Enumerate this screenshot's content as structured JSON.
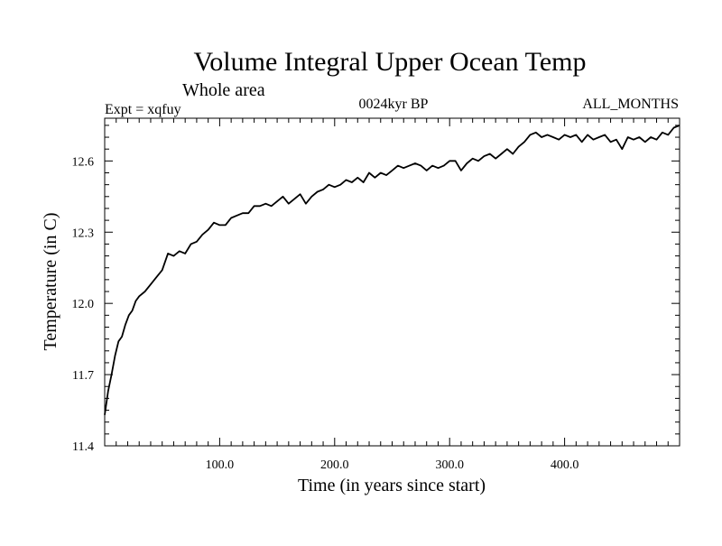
{
  "chart_data": {
    "type": "line",
    "title": "Volume Integral Upper Ocean Temp",
    "subtitle": "Whole area",
    "header": {
      "left": "Expt = xqfuy",
      "center": "0024kyr BP",
      "right": "ALL_MONTHS"
    },
    "xlabel": "Time (in years since start)",
    "ylabel": "Temperature (in C)",
    "xlim": [
      0,
      500
    ],
    "ylim": [
      11.4,
      12.78
    ],
    "x_ticks": [
      100,
      200,
      300,
      400
    ],
    "x_tick_labels": [
      "100.0",
      "200.0",
      "300.0",
      "400.0"
    ],
    "y_ticks": [
      11.4,
      11.7,
      12.0,
      12.3,
      12.6
    ],
    "y_tick_labels": [
      "11.4",
      "11.7",
      "12.0",
      "12.3",
      "12.6"
    ],
    "series": [
      {
        "name": "xqfuy",
        "color": "#000000",
        "points": [
          [
            0,
            11.53
          ],
          [
            3,
            11.63
          ],
          [
            6,
            11.7
          ],
          [
            9,
            11.78
          ],
          [
            12,
            11.84
          ],
          [
            15,
            11.86
          ],
          [
            18,
            11.91
          ],
          [
            21,
            11.95
          ],
          [
            24,
            11.97
          ],
          [
            27,
            12.01
          ],
          [
            30,
            12.03
          ],
          [
            35,
            12.05
          ],
          [
            40,
            12.08
          ],
          [
            45,
            12.11
          ],
          [
            50,
            12.14
          ],
          [
            55,
            12.21
          ],
          [
            60,
            12.2
          ],
          [
            65,
            12.22
          ],
          [
            70,
            12.21
          ],
          [
            75,
            12.25
          ],
          [
            80,
            12.26
          ],
          [
            85,
            12.29
          ],
          [
            90,
            12.31
          ],
          [
            95,
            12.34
          ],
          [
            100,
            12.33
          ],
          [
            105,
            12.33
          ],
          [
            110,
            12.36
          ],
          [
            115,
            12.37
          ],
          [
            120,
            12.38
          ],
          [
            125,
            12.38
          ],
          [
            130,
            12.41
          ],
          [
            135,
            12.41
          ],
          [
            140,
            12.42
          ],
          [
            145,
            12.41
          ],
          [
            150,
            12.43
          ],
          [
            155,
            12.45
          ],
          [
            160,
            12.42
          ],
          [
            165,
            12.44
          ],
          [
            170,
            12.46
          ],
          [
            175,
            12.42
          ],
          [
            180,
            12.45
          ],
          [
            185,
            12.47
          ],
          [
            190,
            12.48
          ],
          [
            195,
            12.5
          ],
          [
            200,
            12.49
          ],
          [
            205,
            12.5
          ],
          [
            210,
            12.52
          ],
          [
            215,
            12.51
          ],
          [
            220,
            12.53
          ],
          [
            225,
            12.51
          ],
          [
            230,
            12.55
          ],
          [
            235,
            12.53
          ],
          [
            240,
            12.55
          ],
          [
            245,
            12.54
          ],
          [
            250,
            12.56
          ],
          [
            255,
            12.58
          ],
          [
            260,
            12.57
          ],
          [
            265,
            12.58
          ],
          [
            270,
            12.59
          ],
          [
            275,
            12.58
          ],
          [
            280,
            12.56
          ],
          [
            285,
            12.58
          ],
          [
            290,
            12.57
          ],
          [
            295,
            12.58
          ],
          [
            300,
            12.6
          ],
          [
            305,
            12.6
          ],
          [
            310,
            12.56
          ],
          [
            315,
            12.59
          ],
          [
            320,
            12.61
          ],
          [
            325,
            12.6
          ],
          [
            330,
            12.62
          ],
          [
            335,
            12.63
          ],
          [
            340,
            12.61
          ],
          [
            345,
            12.63
          ],
          [
            350,
            12.65
          ],
          [
            355,
            12.63
          ],
          [
            360,
            12.66
          ],
          [
            365,
            12.68
          ],
          [
            370,
            12.71
          ],
          [
            375,
            12.72
          ],
          [
            380,
            12.7
          ],
          [
            385,
            12.71
          ],
          [
            390,
            12.7
          ],
          [
            395,
            12.69
          ],
          [
            400,
            12.71
          ],
          [
            405,
            12.7
          ],
          [
            410,
            12.71
          ],
          [
            415,
            12.68
          ],
          [
            420,
            12.71
          ],
          [
            425,
            12.69
          ],
          [
            430,
            12.7
          ],
          [
            435,
            12.71
          ],
          [
            440,
            12.68
          ],
          [
            445,
            12.69
          ],
          [
            450,
            12.65
          ],
          [
            455,
            12.7
          ],
          [
            460,
            12.69
          ],
          [
            465,
            12.7
          ],
          [
            470,
            12.68
          ],
          [
            475,
            12.7
          ],
          [
            480,
            12.69
          ],
          [
            485,
            12.72
          ],
          [
            490,
            12.71
          ],
          [
            495,
            12.74
          ],
          [
            500,
            12.75
          ]
        ]
      }
    ]
  }
}
